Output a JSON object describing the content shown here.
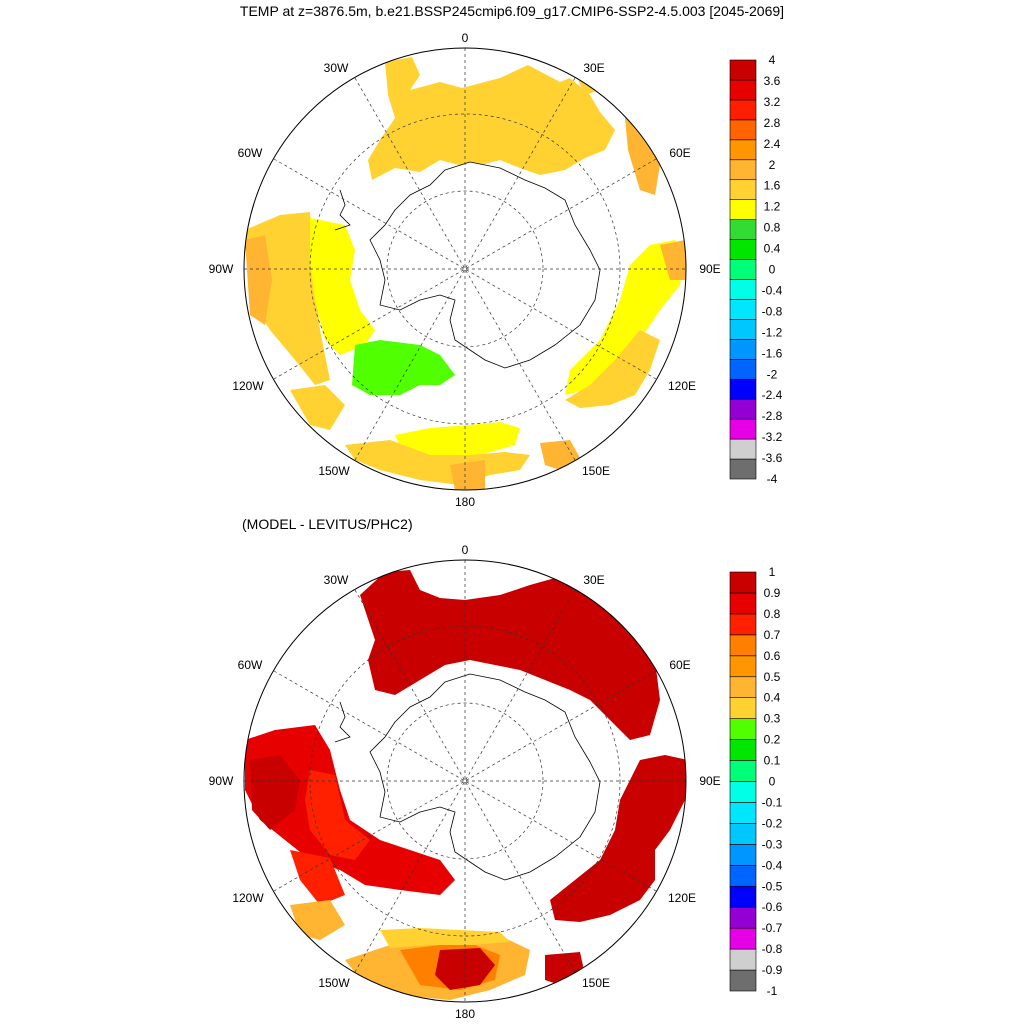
{
  "title": "TEMP at z=3876.5m, b.e21.BSSP245cmip6.f09_g17.CMIP6-SSP2-4.5.003 [2045-2069]",
  "subtitle": "(MODEL - LEVITUS/PHC2)",
  "lon_labels": {
    "top": "0",
    "ne30": "30E",
    "ne60": "60E",
    "e90": "90E",
    "se120": "120E",
    "se150": "150E",
    "bottom": "180",
    "sw150": "150W",
    "sw120": "120W",
    "w90": "90W",
    "nw60": "60W",
    "nw30": "30W"
  },
  "colors": {
    "top_palette": [
      "#6e6e6e",
      "#cfcfcf",
      "#e600e6",
      "#9400d3",
      "#0000ff",
      "#0064ff",
      "#0096ff",
      "#00c8ff",
      "#00e6ff",
      "#00ffe6",
      "#00ff78",
      "#00e600",
      "#32dc32",
      "#ffff00",
      "#ffd232",
      "#ffb432",
      "#ff9600",
      "#ff6400",
      "#ff1e00",
      "#e60000",
      "#c80000"
    ],
    "bottom_palette": [
      "#6e6e6e",
      "#cfcfcf",
      "#e600e6",
      "#9400d3",
      "#0000ff",
      "#0064ff",
      "#0096ff",
      "#00c8ff",
      "#00e6ff",
      "#00ffe6",
      "#00ff78",
      "#00e600",
      "#50ff00",
      "#ffd232",
      "#ffb432",
      "#ff9600",
      "#ff8000",
      "#ff2000",
      "#e60000",
      "#c80000"
    ]
  },
  "top_colorbar_labels": [
    "4",
    "3.6",
    "3.2",
    "2.8",
    "2.4",
    "2",
    "1.6",
    "1.2",
    "0.8",
    "0.4",
    "0",
    "-0.4",
    "-0.8",
    "-1.2",
    "-1.6",
    "-2",
    "-2.4",
    "-2.8",
    "-3.2",
    "-3.6",
    "-4"
  ],
  "bottom_colorbar_labels": [
    "1",
    "0.9",
    "0.8",
    "0.7",
    "0.6",
    "0.5",
    "0.4",
    "0.3",
    "0.2",
    "0.1",
    "0",
    "-0.1",
    "-0.2",
    "-0.3",
    "-0.4",
    "-0.5",
    "-0.6",
    "-0.7",
    "-0.8",
    "-0.9",
    "-1"
  ]
}
